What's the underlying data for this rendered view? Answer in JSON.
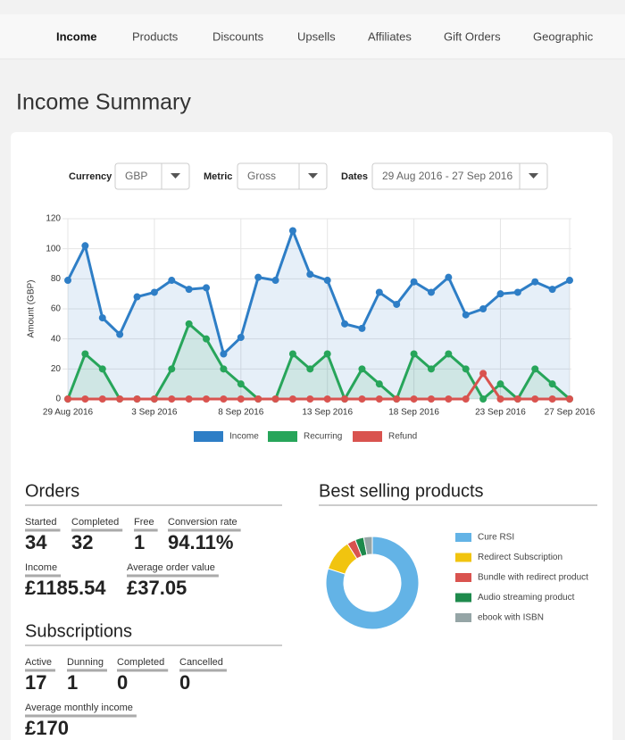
{
  "nav": {
    "items": [
      "Income",
      "Products",
      "Discounts",
      "Upsells",
      "Affiliates",
      "Gift Orders",
      "Geographic"
    ]
  },
  "title": "Income Summary",
  "filters": [
    {
      "label": "Currency",
      "value": "GBP"
    },
    {
      "label": "Metric",
      "value": "Gross"
    },
    {
      "label": "Dates",
      "value": "29 Aug 2016 - 27 Sep 2016"
    }
  ],
  "chart_data": [
    {
      "type": "line",
      "y_label": "Amount (GBP)",
      "categories": [
        "29 Aug 2016",
        null,
        null,
        null,
        null,
        "3 Sep 2016",
        null,
        null,
        null,
        null,
        "8 Sep 2016",
        null,
        null,
        null,
        null,
        "13 Sep 2016",
        null,
        null,
        null,
        null,
        "18 Sep 2016",
        null,
        null,
        null,
        null,
        "23 Sep 2016",
        null,
        null,
        null,
        "27 Sep 2016"
      ],
      "series": [
        {
          "name": "Income",
          "color": "#2e7ec6",
          "fill": true,
          "values": [
            79,
            102,
            54,
            43,
            68,
            71,
            79,
            73,
            74,
            30,
            41,
            81,
            79,
            112,
            83,
            79,
            50,
            47,
            71,
            63,
            78,
            71,
            81,
            56,
            60,
            70,
            71,
            78,
            73,
            79
          ]
        },
        {
          "name": "Recurring",
          "color": "#27a55a",
          "fill": true,
          "values": [
            0,
            30,
            20,
            0,
            0,
            0,
            20,
            50,
            40,
            20,
            10,
            0,
            0,
            30,
            20,
            30,
            0,
            20,
            10,
            0,
            30,
            20,
            30,
            20,
            0,
            10,
            0,
            20,
            10,
            0
          ]
        },
        {
          "name": "Refund",
          "color": "#d9534f",
          "fill": false,
          "values": [
            0,
            0,
            0,
            0,
            0,
            0,
            0,
            0,
            0,
            0,
            0,
            0,
            0,
            0,
            0,
            0,
            0,
            0,
            0,
            0,
            0,
            0,
            0,
            0,
            17,
            0,
            0,
            0,
            0,
            0
          ]
        }
      ],
      "ylim": [
        0,
        120
      ],
      "yticks": [
        0,
        20,
        40,
        60,
        80,
        100,
        120
      ],
      "grid": true
    },
    {
      "type": "pie",
      "donut": true,
      "title": "Best selling products",
      "categories": [
        "Cure RSI",
        "Redirect Subscription",
        "Bundle with redirect product",
        "Audio streaming product",
        "ebook with ISBN"
      ],
      "values": [
        80,
        11,
        3,
        3,
        3
      ],
      "colors": [
        "#63b3e6",
        "#f1c40f",
        "#d9534f",
        "#1e8a4c",
        "#95a5a6"
      ]
    }
  ],
  "orders": {
    "title": "Orders",
    "stats": [
      {
        "label": "Started",
        "value": "34"
      },
      {
        "label": "Completed",
        "value": "32"
      },
      {
        "label": "Free",
        "value": "1"
      },
      {
        "label": "Conversion rate",
        "value": "94.11%"
      },
      {
        "label": "Income",
        "value": "£1185.54"
      },
      {
        "label": "Average order value",
        "value": "£37.05"
      }
    ]
  },
  "subscriptions": {
    "title": "Subscriptions",
    "stats": [
      {
        "label": "Active",
        "value": "17"
      },
      {
        "label": "Dunning",
        "value": "1"
      },
      {
        "label": "Completed",
        "value": "0"
      },
      {
        "label": "Cancelled",
        "value": "0"
      },
      {
        "label": "Average monthly income",
        "value": "£170"
      }
    ]
  }
}
